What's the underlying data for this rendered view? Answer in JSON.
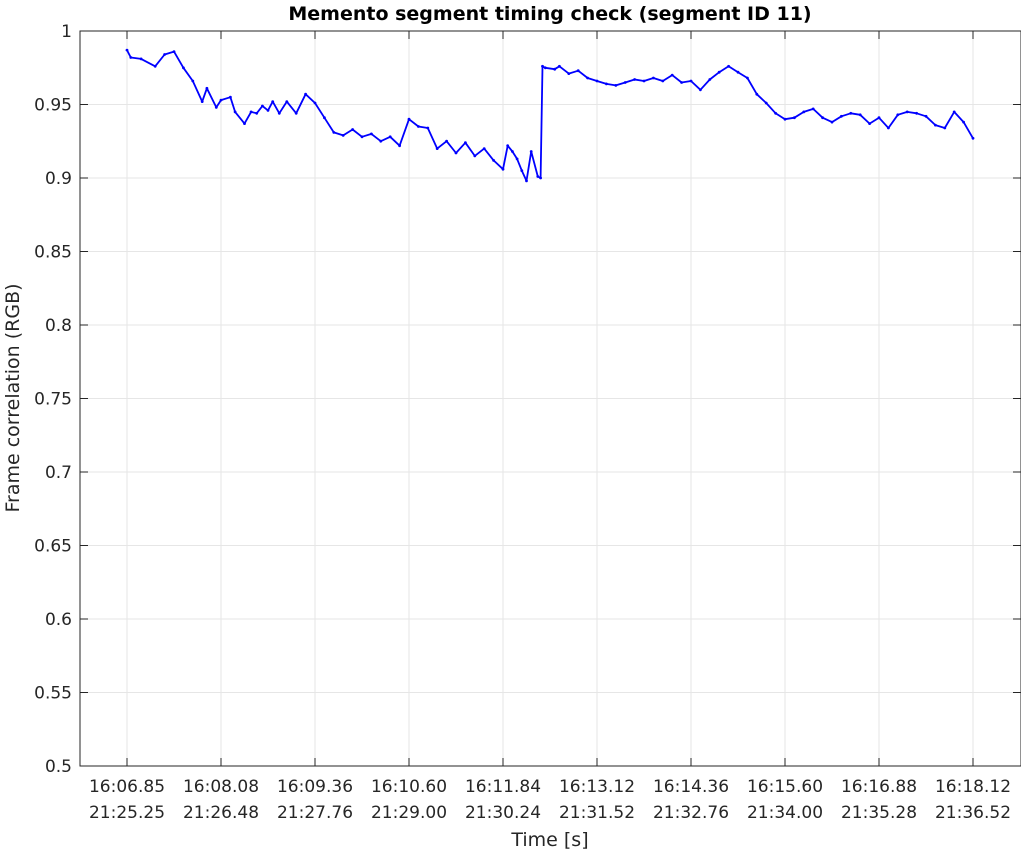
{
  "chart_data": {
    "type": "line",
    "title": "Memento segment timing check (segment ID 11)",
    "xlabel": "Time [s]",
    "ylabel": "Frame correlation (RGB)",
    "ylim": [
      0.5,
      1.0
    ],
    "yticks": [
      0.5,
      0.55,
      0.6,
      0.65,
      0.7,
      0.75,
      0.8,
      0.85,
      0.9,
      0.95,
      1.0
    ],
    "ytick_labels": [
      "0.5",
      "0.55",
      "0.6",
      "0.65",
      "0.7",
      "0.75",
      "0.8",
      "0.85",
      "0.9",
      "0.95",
      "1"
    ],
    "xlim": [
      0,
      9
    ],
    "xticks": [
      0,
      1,
      2,
      3,
      4,
      5,
      6,
      7,
      8,
      9
    ],
    "xtick_labels_line1": [
      "16:06.85",
      "16:08.08",
      "16:09.36",
      "16:10.60",
      "16:11.84",
      "16:13.12",
      "16:14.36",
      "16:15.60",
      "16:16.88",
      "16:18.12"
    ],
    "xtick_labels_line2": [
      "21:25.25",
      "21:26.48",
      "21:27.76",
      "21:29.00",
      "21:30.24",
      "21:31.52",
      "21:32.76",
      "21:34.00",
      "21:35.28",
      "21:36.52"
    ],
    "grid": true,
    "line_color": "#0000ff",
    "series": [
      {
        "x": [
          0.0,
          0.04,
          0.15,
          0.3,
          0.4,
          0.5,
          0.6,
          0.7,
          0.8,
          0.85,
          0.95,
          1.0,
          1.1,
          1.15,
          1.25,
          1.32,
          1.38,
          1.44,
          1.5,
          1.55,
          1.62,
          1.7,
          1.8,
          1.9,
          2.0,
          2.1,
          2.2,
          2.3,
          2.4,
          2.5,
          2.6,
          2.7,
          2.8,
          2.9,
          3.0,
          3.1,
          3.2,
          3.3,
          3.4,
          3.5,
          3.6,
          3.7,
          3.8,
          3.9,
          4.0,
          4.05,
          4.1,
          4.15,
          4.2,
          4.25,
          4.3,
          4.37,
          4.4,
          4.42,
          4.45,
          4.55,
          4.6,
          4.7,
          4.8,
          4.9,
          5.0,
          5.1,
          5.2,
          5.3,
          5.4,
          5.5,
          5.6,
          5.7,
          5.8,
          5.9,
          6.0,
          6.1,
          6.2,
          6.3,
          6.4,
          6.5,
          6.6,
          6.7,
          6.8,
          6.9,
          7.0,
          7.1,
          7.2,
          7.3,
          7.4,
          7.5,
          7.6,
          7.7,
          7.8,
          7.9,
          8.0,
          8.1,
          8.2,
          8.3,
          8.4,
          8.5,
          8.6,
          8.7,
          8.8,
          8.9,
          9.0
        ],
        "y": [
          0.987,
          0.982,
          0.981,
          0.976,
          0.984,
          0.986,
          0.975,
          0.966,
          0.952,
          0.961,
          0.948,
          0.953,
          0.955,
          0.945,
          0.937,
          0.945,
          0.944,
          0.949,
          0.946,
          0.952,
          0.944,
          0.952,
          0.944,
          0.957,
          0.951,
          0.941,
          0.931,
          0.929,
          0.933,
          0.928,
          0.93,
          0.925,
          0.928,
          0.922,
          0.94,
          0.935,
          0.934,
          0.92,
          0.925,
          0.917,
          0.924,
          0.915,
          0.92,
          0.912,
          0.906,
          0.922,
          0.918,
          0.913,
          0.905,
          0.898,
          0.918,
          0.901,
          0.9,
          0.976,
          0.975,
          0.974,
          0.976,
          0.971,
          0.973,
          0.968,
          0.966,
          0.964,
          0.963,
          0.965,
          0.967,
          0.966,
          0.968,
          0.966,
          0.97,
          0.965,
          0.966,
          0.96,
          0.967,
          0.972,
          0.976,
          0.972,
          0.968,
          0.957,
          0.951,
          0.944,
          0.94,
          0.941,
          0.945,
          0.947,
          0.941,
          0.938,
          0.942,
          0.944,
          0.943,
          0.937,
          0.941,
          0.934,
          0.943,
          0.945,
          0.944,
          0.942,
          0.936,
          0.934,
          0.945,
          0.938,
          0.927
        ]
      }
    ]
  }
}
